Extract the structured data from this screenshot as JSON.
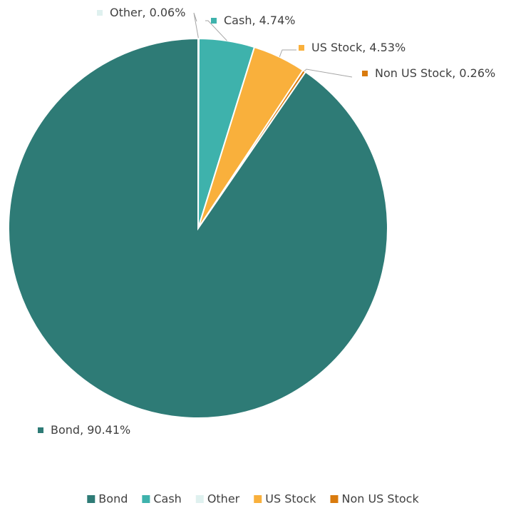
{
  "chart_data": {
    "type": "pie",
    "categories": [
      "Bond",
      "Cash",
      "Other",
      "US Stock",
      "Non US Stock"
    ],
    "values": [
      90.41,
      4.74,
      0.06,
      4.53,
      0.26
    ],
    "value_labels": [
      "90.41%",
      "4.74%",
      "0.06%",
      "4.53%",
      "0.26%"
    ],
    "colors": [
      "#2e7b76",
      "#3eb2ac",
      "#dff1ef",
      "#f9b03c",
      "#d97b0e"
    ],
    "legend": "bottom"
  }
}
